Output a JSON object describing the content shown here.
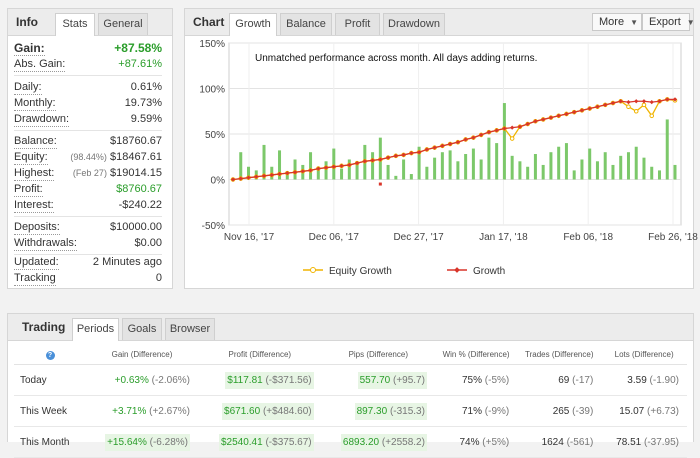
{
  "info": {
    "title": "Info",
    "tabs": [
      "Stats",
      "General"
    ],
    "gain": {
      "label": "Gain:",
      "value": "+87.58%"
    },
    "abs_gain": {
      "label": "Abs. Gain:",
      "value": "+87.61%"
    },
    "daily": {
      "label": "Daily:",
      "value": "0.61%"
    },
    "monthly": {
      "label": "Monthly:",
      "value": "19.73%"
    },
    "drawdown": {
      "label": "Drawdown:",
      "value": "9.59%"
    },
    "balance": {
      "label": "Balance:",
      "value": "$18760.67"
    },
    "equity": {
      "label": "Equity:",
      "note": "(98.44%)",
      "value": "$18467.61"
    },
    "highest": {
      "label": "Highest:",
      "note": "(Feb 27)",
      "value": "$19014.15"
    },
    "profit": {
      "label": "Profit:",
      "value": "$8760.67"
    },
    "interest": {
      "label": "Interest:",
      "value": "-$240.22"
    },
    "deposits": {
      "label": "Deposits:",
      "value": "$10000.00"
    },
    "withdrawals": {
      "label": "Withdrawals:",
      "value": "$0.00"
    },
    "updated": {
      "label": "Updated:",
      "value": "2 Minutes ago"
    },
    "tracking": {
      "label": "Tracking",
      "value": "0"
    }
  },
  "chart_panel": {
    "title": "Chart",
    "tabs": [
      "Growth",
      "Balance",
      "Profit",
      "Drawdown"
    ],
    "more_label": "More",
    "export_label": "Export"
  },
  "chart_data": {
    "type": "line",
    "annotation": "Unmatched performance across month. All days adding returns.",
    "ylim": [
      -50,
      150
    ],
    "yticks": [
      "150%",
      "100%",
      "50%",
      "0%",
      "-50%"
    ],
    "xticks": [
      "Nov 16, '17",
      "Dec 06, '17",
      "Dec 27, '17",
      "Jan 17, '18",
      "Feb 06, '18",
      "Feb 26, '18"
    ],
    "grid": true,
    "legend_position": "bottom",
    "series": [
      {
        "name": "Equity Growth",
        "color": "#f0b400",
        "values": [
          0,
          1,
          2,
          3,
          4,
          5,
          6,
          7,
          8,
          9,
          10,
          12,
          13,
          14,
          15,
          16,
          18,
          20,
          21,
          22,
          24,
          26,
          27,
          29,
          30,
          33,
          35,
          37,
          39,
          41,
          44,
          46,
          49,
          52,
          54,
          56,
          45,
          58,
          61,
          64,
          66,
          68,
          70,
          72,
          74,
          76,
          78,
          80,
          82,
          84,
          86,
          80,
          75,
          82,
          70,
          86,
          88,
          87
        ]
      },
      {
        "name": "Growth",
        "color": "#d9352a",
        "values": [
          0,
          1,
          2,
          3,
          4,
          5,
          6,
          7,
          8,
          9,
          10,
          12,
          13,
          14,
          15,
          16,
          18,
          20,
          21,
          22,
          24,
          26,
          27,
          29,
          30,
          33,
          35,
          37,
          39,
          41,
          44,
          46,
          49,
          52,
          54,
          56,
          57,
          58,
          61,
          64,
          66,
          68,
          70,
          72,
          74,
          76,
          78,
          80,
          82,
          84,
          86,
          85,
          86,
          86,
          85,
          86,
          88,
          88
        ]
      }
    ],
    "bars": {
      "color": "#7cc86a",
      "values": [
        0,
        30,
        14,
        10,
        38,
        14,
        32,
        6,
        22,
        16,
        30,
        14,
        20,
        34,
        12,
        22,
        18,
        38,
        30,
        46,
        16,
        4,
        22,
        6,
        36,
        14,
        24,
        30,
        32,
        20,
        28,
        34,
        22,
        46,
        40,
        84,
        26,
        20,
        14,
        28,
        16,
        30,
        36,
        40,
        10,
        22,
        34,
        20,
        30,
        16,
        26,
        30,
        36,
        24,
        14,
        10,
        66,
        16
      ]
    },
    "outlier_marker": {
      "value": -5,
      "color": "#d9352a"
    }
  },
  "trading": {
    "title": "Trading",
    "tabs": [
      "Periods",
      "Goals",
      "Browser"
    ],
    "help_icon": "?",
    "columns": [
      "Gain (Difference)",
      "Profit (Difference)",
      "Pips (Difference)",
      "Win % (Difference)",
      "Trades (Difference)",
      "Lots (Difference)"
    ],
    "rows": [
      {
        "label": "Today",
        "gain": "+0.63%",
        "gain_diff": "(-2.06%)",
        "profit": "$117.81",
        "profit_diff": "(-$371.56)",
        "pips": "557.70",
        "pips_diff": "(+95.7)",
        "win": "75%",
        "win_diff": "(-5%)",
        "trades": "69",
        "trades_diff": "(-17)",
        "lots": "3.59",
        "lots_diff": "(-1.90)"
      },
      {
        "label": "This Week",
        "gain": "+3.71%",
        "gain_diff": "(+2.67%)",
        "profit": "$671.60",
        "profit_diff": "(+$484.60)",
        "pips": "897.30",
        "pips_diff": "(-315.3)",
        "win": "71%",
        "win_diff": "(-9%)",
        "trades": "265",
        "trades_diff": "(-39)",
        "lots": "15.07",
        "lots_diff": "(+6.73)"
      },
      {
        "label": "This Month",
        "gain": "+15.64%",
        "gain_diff": "(-6.28%)",
        "profit": "$2540.41",
        "profit_diff": "(-$375.67)",
        "pips": "6893.20",
        "pips_diff": "(+2558.2)",
        "win": "74%",
        "win_diff": "(+5%)",
        "trades": "1624",
        "trades_diff": "(-561)",
        "lots": "78.51",
        "lots_diff": "(-37.95)"
      }
    ]
  }
}
